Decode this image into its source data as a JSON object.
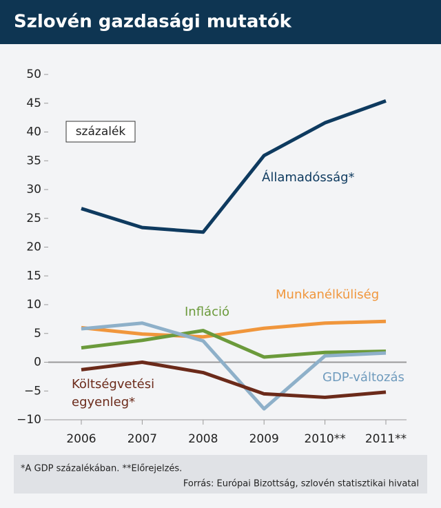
{
  "chart_data": {
    "type": "line",
    "title": "Szlovén gazdasági mutatók",
    "unit_label": "százalék",
    "categories": [
      "2006",
      "2007",
      "2008",
      "2009",
      "2010**",
      "2011**"
    ],
    "series": [
      {
        "name": "Államadósság*",
        "color": "#0e3a5f",
        "values": [
          26.7,
          23.4,
          22.6,
          35.9,
          41.6,
          45.4
        ]
      },
      {
        "name": "Munkanélküliség",
        "color": "#f0963c",
        "values": [
          6.0,
          4.9,
          4.4,
          5.9,
          6.8,
          7.1
        ]
      },
      {
        "name": "Infláció",
        "color": "#6b9a3b",
        "values": [
          2.5,
          3.8,
          5.5,
          0.9,
          1.7,
          1.9
        ]
      },
      {
        "name": "GDP-változás",
        "color": "#8eb0c9",
        "values": [
          5.8,
          6.8,
          3.7,
          -8.1,
          1.1,
          1.6
        ]
      },
      {
        "name": "Költségvetési egyenleg*",
        "color": "#6b2a1a",
        "values": [
          -1.3,
          0.0,
          -1.8,
          -5.5,
          -6.1,
          -5.2
        ]
      }
    ],
    "ylim": [
      -10,
      50
    ],
    "yticks": [
      {
        "value": -10,
        "label": "−10"
      },
      {
        "value": -5,
        "label": "−5"
      },
      0,
      5,
      10,
      15,
      20,
      25,
      30,
      35,
      40,
      45,
      50
    ],
    "footnote": "*A GDP százalékában. **Előrejelzés.",
    "source": "Forrás: Európai Bizottság, szlovén statisztikai hivatal"
  }
}
